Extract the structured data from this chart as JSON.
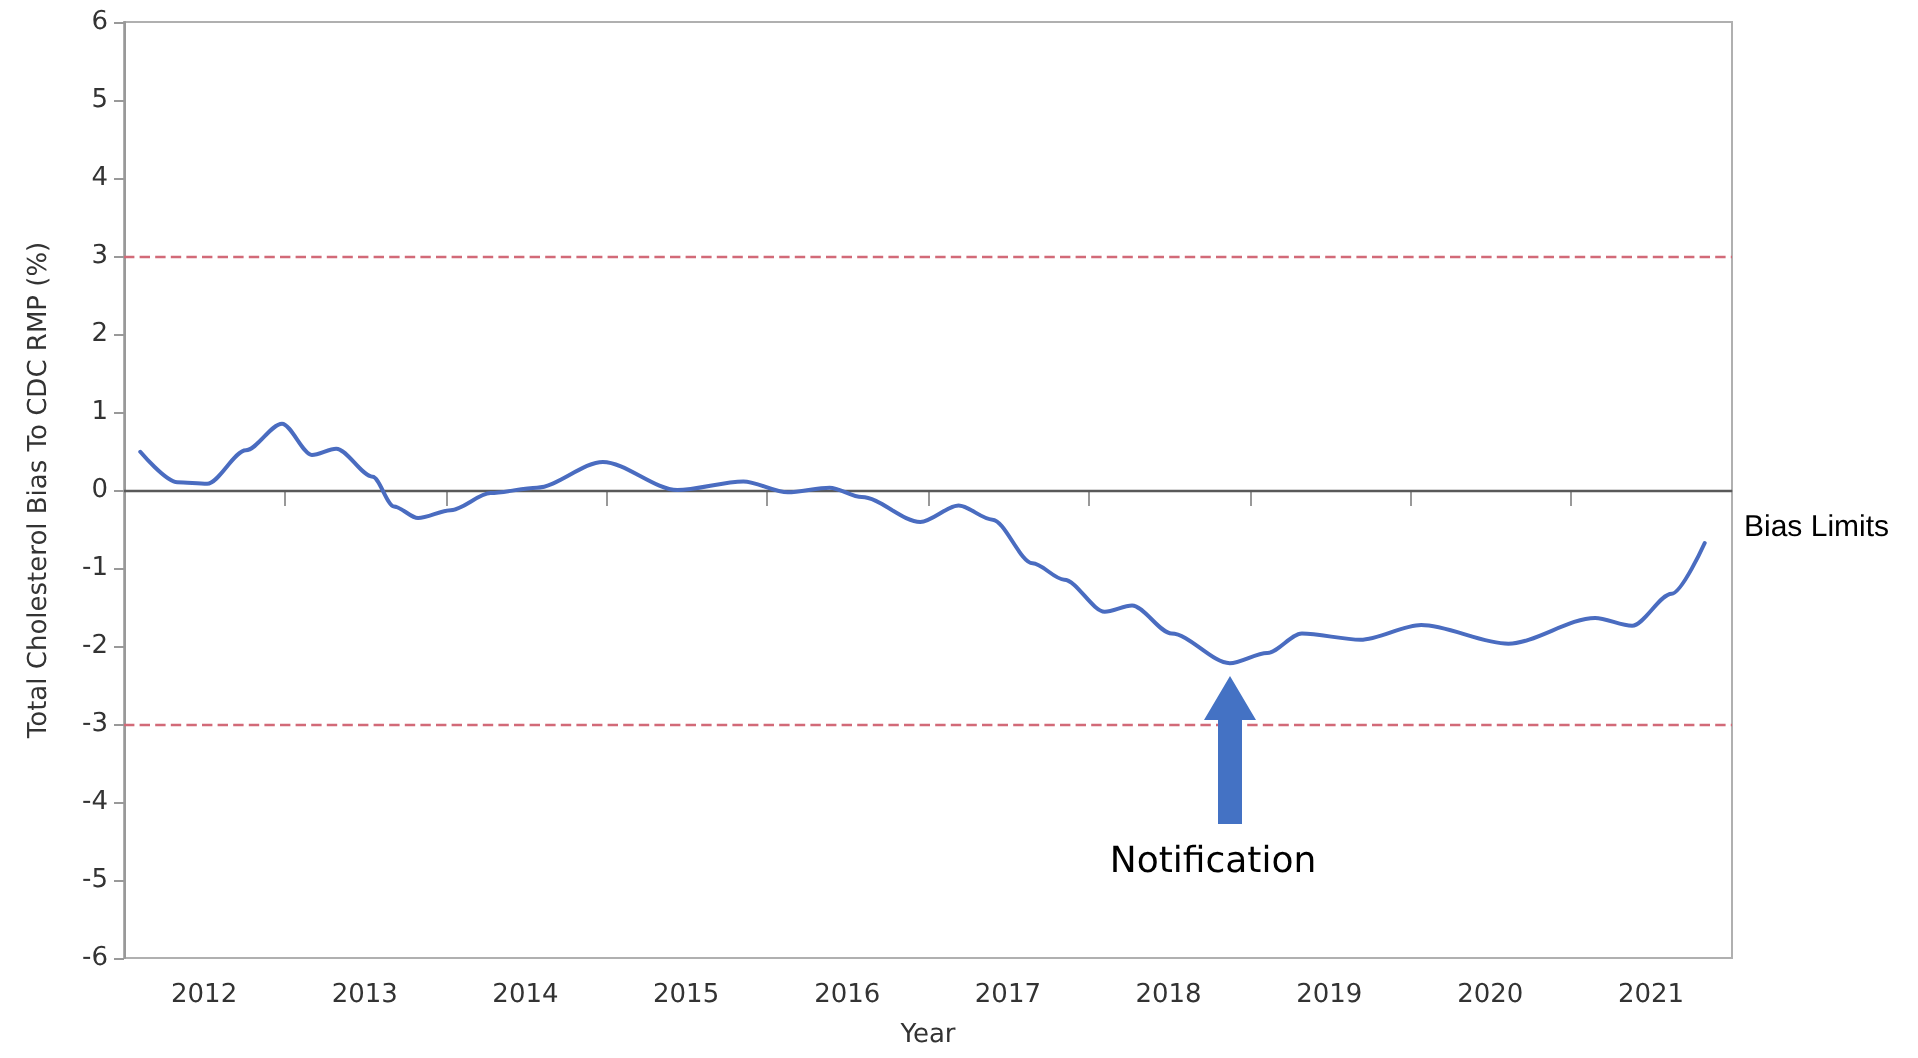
{
  "chart_data": {
    "type": "line",
    "ylabel": "Total Cholesterol Bias To CDC RMP (%)",
    "xlabel": "Year",
    "x": [
      "2012-02-07",
      "2012-05-01",
      "2012-07-08",
      "2012-10-04",
      "2012-12-25",
      "2013-03-03",
      "2013-04-27",
      "2013-07-19",
      "2013-09-05",
      "2013-10-30",
      "2014-01-12",
      "2014-04-13",
      "2014-07-27",
      "2014-12-24",
      "2015-06-11",
      "2015-11-08",
      "2016-02-17",
      "2016-05-22",
      "2016-08-03",
      "2016-12-14",
      "2017-03-11",
      "2017-05-27",
      "2017-08-26",
      "2017-11-06",
      "2018-02-06",
      "2018-04-09",
      "2018-07-08",
      "2018-11-17",
      "2019-02-10",
      "2019-04-30",
      "2019-09-10",
      "2020-01-26",
      "2020-08-11",
      "2021-02-24",
      "2021-05-19",
      "2021-08-17",
      "2021-10-31"
    ],
    "series": [
      {
        "color": "#4a6cc0",
        "values": [
          0.49,
          0.1,
          0.08,
          0.51,
          0.85,
          0.45,
          0.53,
          0.17,
          -0.21,
          -0.36,
          -0.26,
          -0.04,
          0.03,
          0.36,
          0.0,
          0.11,
          -0.03,
          0.03,
          -0.09,
          -0.41,
          -0.2,
          -0.38,
          -0.94,
          -1.15,
          -1.56,
          -1.48,
          -1.84,
          -2.22,
          -2.09,
          -1.84,
          -1.92,
          -1.73,
          -1.97,
          -1.64,
          -1.74,
          -1.33,
          -0.68
        ]
      }
    ],
    "xlim": [
      "2012-01-01",
      "2022-01-01"
    ],
    "xticks": [
      {
        "value": "2012-07-01",
        "label": "2012"
      },
      {
        "value": "2013-01-01",
        "label": null
      },
      {
        "value": "2013-07-01",
        "label": "2013"
      },
      {
        "value": "2014-01-01",
        "label": null
      },
      {
        "value": "2014-07-01",
        "label": "2014"
      },
      {
        "value": "2015-01-01",
        "label": null
      },
      {
        "value": "2015-07-01",
        "label": "2015"
      },
      {
        "value": "2016-01-01",
        "label": null
      },
      {
        "value": "2016-07-01",
        "label": "2016"
      },
      {
        "value": "2017-01-01",
        "label": null
      },
      {
        "value": "2017-07-01",
        "label": "2017"
      },
      {
        "value": "2018-01-01",
        "label": null
      },
      {
        "value": "2018-07-01",
        "label": "2018"
      },
      {
        "value": "2019-01-01",
        "label": null
      },
      {
        "value": "2019-07-01",
        "label": "2019"
      },
      {
        "value": "2020-01-01",
        "label": null
      },
      {
        "value": "2020-07-01",
        "label": "2020"
      },
      {
        "value": "2021-01-01",
        "label": null
      },
      {
        "value": "2021-07-01",
        "label": "2021"
      }
    ],
    "ylim": [
      -6,
      6
    ],
    "yticks": [
      -6,
      -5,
      -4,
      -3,
      -2,
      -1,
      0,
      1,
      2,
      3,
      4,
      5,
      6
    ],
    "ref_lines": [
      {
        "axis": "y",
        "value": 3,
        "color": "#d26a78",
        "line_style": "dashed"
      },
      {
        "axis": "y",
        "value": 0,
        "color": "#595959",
        "line_style": "solid"
      },
      {
        "axis": "y",
        "value": -3,
        "color": "#d26a78",
        "line_style": "dashed"
      }
    ],
    "annotations": [
      "Bias Limits",
      "Notification"
    ],
    "grid": false,
    "marker": "none",
    "line_style": "solid"
  }
}
